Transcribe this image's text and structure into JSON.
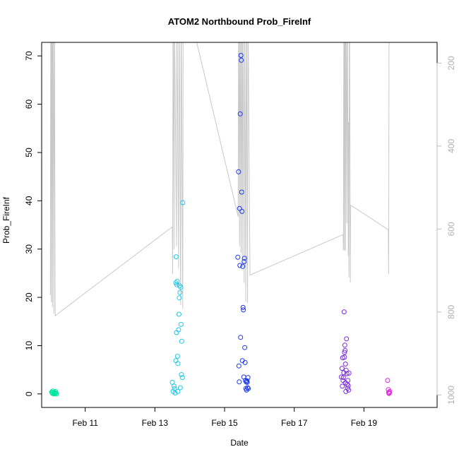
{
  "chart_data": {
    "type": "scatter",
    "title": "ATOM2 Northbound Prob_FireInf",
    "xlabel": "Date",
    "ylabel": "Prob_FireInf",
    "ylim": [
      -2.8,
      72.8
    ],
    "y_ticks": [
      "0",
      "10",
      "20",
      "30",
      "40",
      "50",
      "60",
      "70"
    ],
    "x_ticks": [
      {
        "label": "Feb 11",
        "day": 11
      },
      {
        "label": "Feb 13",
        "day": 13
      },
      {
        "label": "Feb 15",
        "day": 15
      },
      {
        "label": "Feb 17",
        "day": 17
      },
      {
        "label": "Feb 19",
        "day": 19
      }
    ],
    "xlim_days": [
      9.75,
      21.1
    ],
    "right_axis": {
      "reversed": true,
      "ylim": [
        1030,
        150
      ],
      "ticks": [
        "200",
        "400",
        "600",
        "800",
        "1000"
      ],
      "color": "#bebebe"
    },
    "groups": [
      {
        "color": "#00e5a0",
        "points": [
          [
            10.04,
            0.4
          ],
          [
            10.06,
            0.1
          ],
          [
            10.07,
            0.6
          ],
          [
            10.09,
            0.2
          ],
          [
            10.1,
            0.0
          ],
          [
            10.12,
            0.3
          ],
          [
            10.13,
            0.1
          ],
          [
            10.15,
            0.5
          ],
          [
            10.16,
            0.2
          ],
          [
            10.18,
            0.0
          ],
          [
            10.05,
            0.3
          ],
          [
            10.14,
            0.2
          ]
        ]
      },
      {
        "color": "#1fc8e8",
        "points": [
          [
            13.5,
            2.4
          ],
          [
            13.52,
            0.5
          ],
          [
            13.55,
            1.6
          ],
          [
            13.56,
            1.1
          ],
          [
            13.58,
            0.2
          ],
          [
            13.6,
            6.9
          ],
          [
            13.6,
            23.0
          ],
          [
            13.61,
            28.4
          ],
          [
            13.62,
            12.7
          ],
          [
            13.63,
            22.6
          ],
          [
            13.64,
            23.3
          ],
          [
            13.65,
            7.8
          ],
          [
            13.66,
            6.3
          ],
          [
            13.66,
            0.5
          ],
          [
            13.68,
            13.3
          ],
          [
            13.69,
            16.5
          ],
          [
            13.7,
            19.9
          ],
          [
            13.71,
            22.4
          ],
          [
            13.72,
            21.0
          ],
          [
            13.73,
            1.3
          ],
          [
            13.74,
            22.1
          ],
          [
            13.75,
            14.4
          ],
          [
            13.76,
            4.0
          ],
          [
            13.77,
            10.9
          ],
          [
            13.79,
            3.4
          ],
          [
            13.8,
            39.6
          ]
        ]
      },
      {
        "color": "#1a35f0",
        "points": [
          [
            15.38,
            28.3
          ],
          [
            15.4,
            46.0
          ],
          [
            15.41,
            5.8
          ],
          [
            15.42,
            2.5
          ],
          [
            15.43,
            38.4
          ],
          [
            15.44,
            26.6
          ],
          [
            15.45,
            58.0
          ],
          [
            15.46,
            11.7
          ],
          [
            15.47,
            70.1
          ],
          [
            15.48,
            69.1
          ],
          [
            15.49,
            41.8
          ],
          [
            15.5,
            37.8
          ],
          [
            15.51,
            6.9
          ],
          [
            15.52,
            26.4
          ],
          [
            15.53,
            17.9
          ],
          [
            15.54,
            17.4
          ],
          [
            15.55,
            3.5
          ],
          [
            15.56,
            27.4
          ],
          [
            15.57,
            28.1
          ],
          [
            15.58,
            9.6
          ],
          [
            15.59,
            6.5
          ],
          [
            15.6,
            2.8
          ],
          [
            15.61,
            1.1
          ],
          [
            15.62,
            2.5
          ],
          [
            15.63,
            0.8
          ],
          [
            15.64,
            2.7
          ],
          [
            15.65,
            2.4
          ],
          [
            15.66,
            1.3
          ],
          [
            15.67,
            3.4
          ],
          [
            15.68,
            1.1
          ]
        ]
      },
      {
        "color": "#7a2cd8",
        "points": [
          [
            18.35,
            3.5
          ],
          [
            18.37,
            5.3
          ],
          [
            18.38,
            1.6
          ],
          [
            18.39,
            7.5
          ],
          [
            18.4,
            2.8
          ],
          [
            18.41,
            3.4
          ],
          [
            18.42,
            4.4
          ],
          [
            18.43,
            17.0
          ],
          [
            18.44,
            8.6
          ],
          [
            18.45,
            10.1
          ],
          [
            18.46,
            9.0
          ],
          [
            18.47,
            6.2
          ],
          [
            18.48,
            0.5
          ],
          [
            18.49,
            4.9
          ],
          [
            18.5,
            11.4
          ],
          [
            18.51,
            4.2
          ],
          [
            18.52,
            2.0
          ],
          [
            18.53,
            1.2
          ],
          [
            18.54,
            2.8
          ],
          [
            18.55,
            1.7
          ],
          [
            18.56,
            0.8
          ],
          [
            18.57,
            4.3
          ],
          [
            18.44,
            7.6
          ],
          [
            18.47,
            2.3
          ]
        ]
      },
      {
        "color": "#e020e0",
        "points": [
          [
            19.68,
            2.8
          ],
          [
            19.7,
            0.9
          ],
          [
            19.71,
            0.3
          ],
          [
            19.72,
            0.1
          ],
          [
            19.73,
            0.2
          ],
          [
            19.74,
            0.5
          ]
        ]
      }
    ],
    "line_color": "#c8c8c8",
    "line": [
      [
        10.0,
        20.5
      ],
      [
        10.01,
        72.8
      ],
      [
        10.02,
        72.8
      ],
      [
        10.03,
        19.0
      ],
      [
        10.04,
        72.8
      ],
      [
        10.05,
        72.8
      ],
      [
        10.06,
        18.0
      ],
      [
        10.07,
        72.8
      ],
      [
        10.08,
        72.8
      ],
      [
        10.1,
        16.6
      ],
      [
        10.11,
        72.8
      ],
      [
        10.12,
        72.8
      ],
      [
        10.14,
        16.2
      ],
      [
        13.5,
        34.6
      ],
      [
        13.51,
        24.9
      ],
      [
        13.52,
        72.8
      ],
      [
        13.53,
        72.8
      ],
      [
        13.55,
        29.9
      ],
      [
        13.56,
        72.8
      ],
      [
        13.57,
        72.8
      ],
      [
        13.62,
        30.6
      ],
      [
        13.63,
        72.8
      ],
      [
        13.64,
        72.8
      ],
      [
        13.68,
        25.9
      ],
      [
        13.69,
        72.8
      ],
      [
        13.7,
        72.8
      ],
      [
        13.74,
        18.4
      ],
      [
        13.75,
        72.8
      ],
      [
        13.76,
        72.8
      ],
      [
        13.8,
        17.7
      ],
      [
        13.81,
        72.8
      ],
      [
        13.82,
        72.8
      ],
      [
        14.2,
        72.8
      ],
      [
        15.39,
        36.7
      ],
      [
        15.4,
        72.8
      ],
      [
        15.41,
        72.8
      ],
      [
        15.43,
        30.6
      ],
      [
        15.44,
        72.8
      ],
      [
        15.45,
        72.8
      ],
      [
        15.47,
        29.2
      ],
      [
        15.48,
        72.8
      ],
      [
        15.49,
        72.8
      ],
      [
        15.51,
        26.9
      ],
      [
        15.52,
        72.8
      ],
      [
        15.53,
        72.8
      ],
      [
        15.56,
        23.0
      ],
      [
        15.57,
        72.8
      ],
      [
        15.58,
        72.8
      ],
      [
        15.61,
        19.1
      ],
      [
        15.62,
        72.8
      ],
      [
        15.63,
        72.8
      ],
      [
        15.66,
        18.8
      ],
      [
        15.67,
        72.8
      ],
      [
        15.68,
        72.8
      ],
      [
        15.73,
        24.6
      ],
      [
        18.4,
        33.0
      ],
      [
        18.41,
        29.8
      ],
      [
        18.42,
        72.8
      ],
      [
        18.43,
        72.8
      ],
      [
        18.44,
        29.7
      ],
      [
        18.45,
        72.8
      ],
      [
        18.46,
        72.8
      ],
      [
        18.47,
        29.7
      ],
      [
        18.48,
        72.8
      ],
      [
        18.49,
        72.8
      ],
      [
        18.51,
        35.3
      ],
      [
        18.52,
        72.8
      ],
      [
        18.53,
        72.8
      ],
      [
        18.55,
        28.5
      ],
      [
        18.56,
        56.3
      ],
      [
        18.57,
        24.1
      ],
      [
        18.58,
        72.8
      ],
      [
        18.59,
        72.8
      ],
      [
        18.61,
        23.1
      ],
      [
        18.62,
        39.1
      ],
      [
        19.7,
        34.0
      ],
      [
        19.71,
        24.8
      ],
      [
        19.72,
        72.8
      ]
    ]
  }
}
